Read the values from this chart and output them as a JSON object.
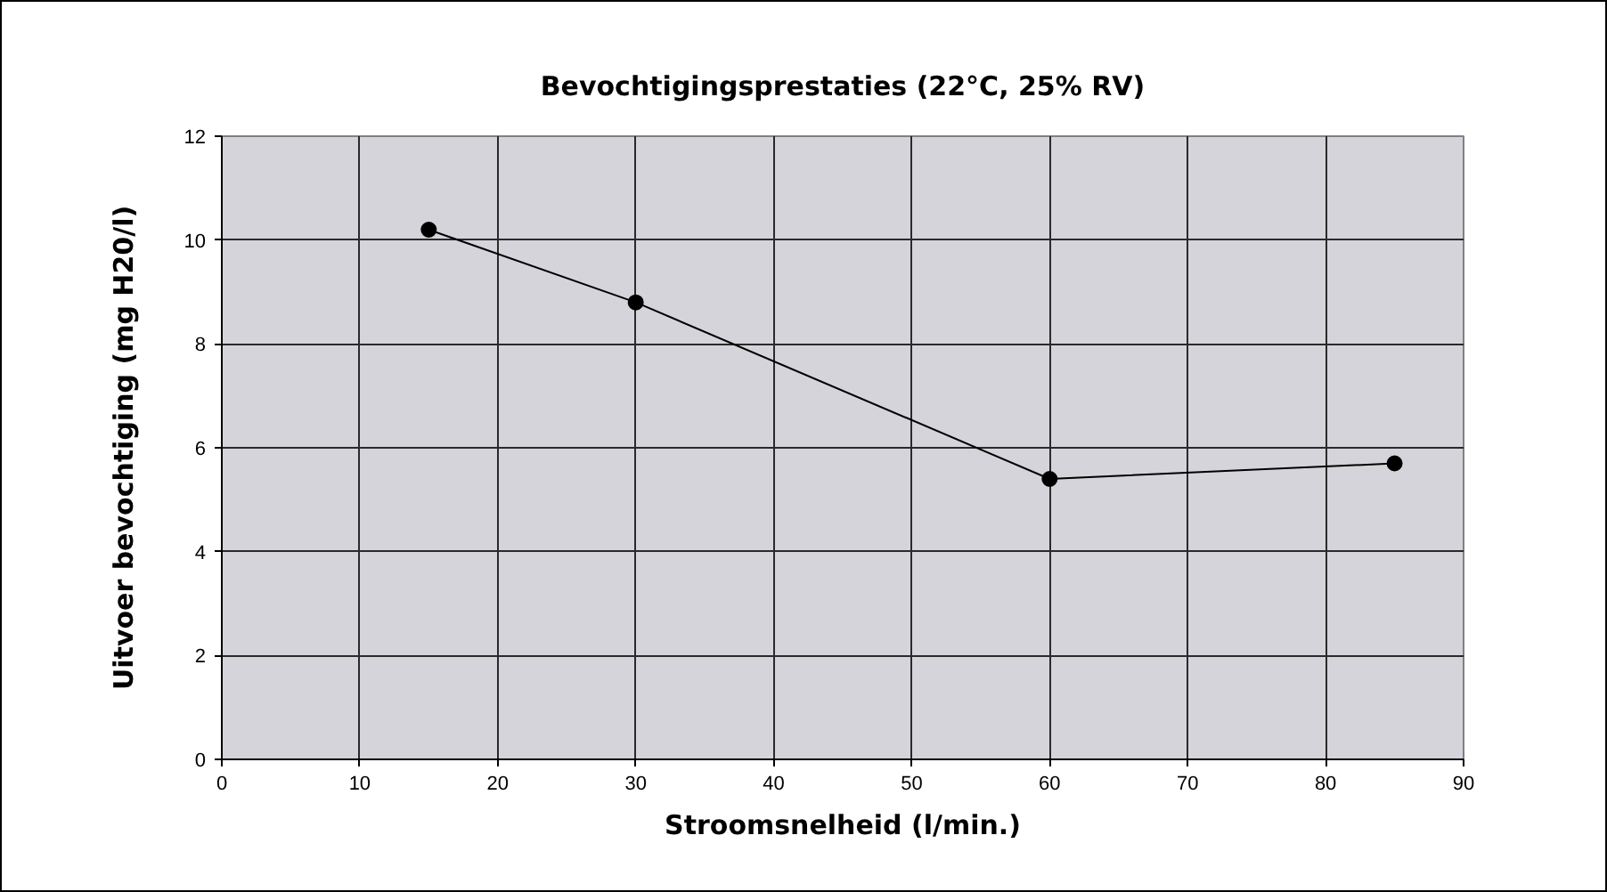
{
  "chart_data": {
    "type": "line",
    "title": "Bevochtigingsprestaties (22°C, 25% RV)",
    "xlabel": "Stroomsnelheid (l/min.)",
    "ylabel": "Uitvoer bevochtiging (mg H20/l)",
    "x": [
      15,
      30,
      60,
      85
    ],
    "series": [
      {
        "color": "#000000",
        "values": [
          10.2,
          8.8,
          5.4,
          5.7
        ]
      }
    ],
    "xlim": [
      0,
      90
    ],
    "ylim": [
      0,
      12
    ],
    "xticks": [
      0,
      10,
      20,
      30,
      40,
      50,
      60,
      70,
      80,
      90
    ],
    "yticks": [
      0,
      2,
      4,
      6,
      8,
      10,
      12
    ],
    "grid": true,
    "marker": "circle",
    "line_style": "solid"
  }
}
